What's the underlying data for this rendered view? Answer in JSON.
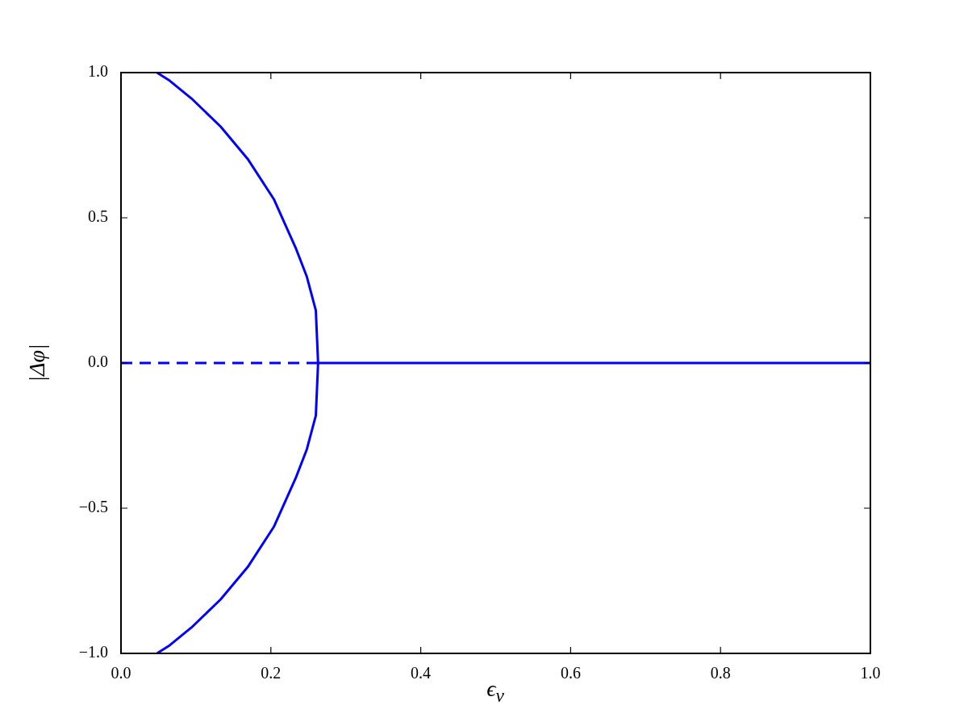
{
  "chart_data": {
    "type": "line",
    "xlabel": "ϵ$_{v}$",
    "ylabel": "|Δφ|",
    "xlim": [
      0,
      1
    ],
    "ylim": [
      -1,
      1
    ],
    "xticks": [
      {
        "value": 0,
        "label": "0.0"
      },
      {
        "value": 0.2,
        "label": "0.2"
      },
      {
        "value": 0.4,
        "label": "0.4"
      },
      {
        "value": 0.6,
        "label": "0.6"
      },
      {
        "value": 0.8,
        "label": "0.8"
      },
      {
        "value": 1,
        "label": "1.0"
      }
    ],
    "yticks": [
      {
        "value": -1,
        "label": "−1.0"
      },
      {
        "value": -0.5,
        "label": "−0.5"
      },
      {
        "value": 0,
        "label": "0.0"
      },
      {
        "value": 0.5,
        "label": "0.5"
      },
      {
        "value": 1,
        "label": "1.0"
      }
    ],
    "grid": false,
    "legend": false,
    "marker": "none",
    "series": [
      {
        "color": "#0000ff",
        "line_style": "solid",
        "x": [
          0.048,
          0.065,
          0.094,
          0.133,
          0.169,
          0.204,
          0.233,
          0.248,
          0.26,
          0.263,
          0.26,
          0.248,
          0.233,
          0.204,
          0.169,
          0.133,
          0.094,
          0.065,
          0.048
        ],
        "values": [
          1,
          0.972,
          0.911,
          0.814,
          0.703,
          0.564,
          0.397,
          0.297,
          0.181,
          0,
          -0.181,
          -0.297,
          -0.397,
          -0.564,
          -0.703,
          -0.814,
          -0.911,
          -0.972,
          -1
        ]
      },
      {
        "color": "#0000ff",
        "line_style": "solid",
        "x": [
          0.263,
          1
        ],
        "values": [
          0,
          0
        ]
      },
      {
        "color": "#0000ff",
        "line_style": "dashed",
        "x": [
          0,
          0.263
        ],
        "values": [
          0,
          0
        ]
      }
    ]
  }
}
